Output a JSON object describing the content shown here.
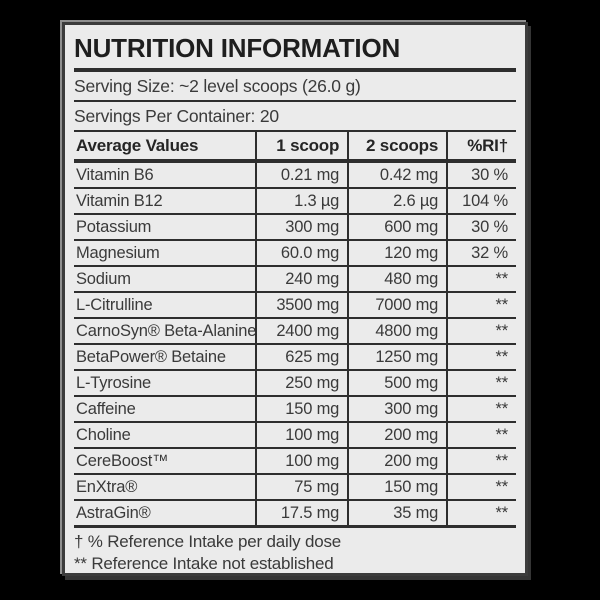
{
  "panel": {
    "title": "NUTRITION INFORMATION",
    "serving_size": "Serving Size: ~2 level scoops (26.0 g)",
    "servings_per_container": "Servings Per Container: 20"
  },
  "table": {
    "headers": {
      "name": "Average Values",
      "one_scoop": "1 scoop",
      "two_scoops": "2 scoops",
      "ri": "%RI†"
    },
    "rows": [
      {
        "name": "Vitamin B6",
        "one_scoop": "0.21 mg",
        "two_scoops": "0.42 mg",
        "ri": "30 %"
      },
      {
        "name": "Vitamin B12",
        "one_scoop": "1.3 µg",
        "two_scoops": "2.6 µg",
        "ri": "104 %"
      },
      {
        "name": "Potassium",
        "one_scoop": "300 mg",
        "two_scoops": "600 mg",
        "ri": "30 %"
      },
      {
        "name": "Magnesium",
        "one_scoop": "60.0 mg",
        "two_scoops": "120 mg",
        "ri": "32 %"
      },
      {
        "name": "Sodium",
        "one_scoop": "240 mg",
        "two_scoops": "480 mg",
        "ri": "**"
      },
      {
        "name": "L-Citrulline",
        "one_scoop": "3500 mg",
        "two_scoops": "7000 mg",
        "ri": "**"
      },
      {
        "name": "CarnoSyn® Beta-Alanine",
        "one_scoop": "2400 mg",
        "two_scoops": "4800 mg",
        "ri": "**"
      },
      {
        "name": "BetaPower® Betaine",
        "one_scoop": "625 mg",
        "two_scoops": "1250 mg",
        "ri": "**"
      },
      {
        "name": "L-Tyrosine",
        "one_scoop": "250 mg",
        "two_scoops": "500 mg",
        "ri": "**"
      },
      {
        "name": "Caffeine",
        "one_scoop": "150 mg",
        "two_scoops": "300 mg",
        "ri": "**"
      },
      {
        "name": "Choline",
        "one_scoop": "100 mg",
        "two_scoops": "200 mg",
        "ri": "**"
      },
      {
        "name": "CereBoost™",
        "one_scoop": "100 mg",
        "two_scoops": "200 mg",
        "ri": "**"
      },
      {
        "name": "EnXtra®",
        "one_scoop": "75 mg",
        "two_scoops": "150 mg",
        "ri": "**"
      },
      {
        "name": "AstraGin®",
        "one_scoop": "17.5 mg",
        "two_scoops": "35 mg",
        "ri": "**"
      }
    ]
  },
  "footnotes": [
    "† % Reference Intake per daily dose",
    "** Reference Intake not established"
  ],
  "colors": {
    "background": "#000000",
    "panel": "#ebebeb",
    "line": "#2e2e2e",
    "text": "#3a3a3a"
  }
}
